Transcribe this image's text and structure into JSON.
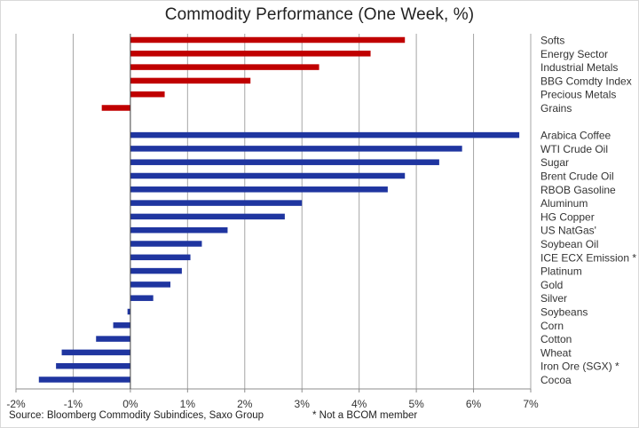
{
  "chart_data": {
    "type": "bar",
    "orientation": "horizontal",
    "title": "Commodity Performance (One Week, %)",
    "xlim": [
      -2,
      7
    ],
    "xticks": [
      "-2%",
      "-1%",
      "0%",
      "1%",
      "2%",
      "3%",
      "4%",
      "5%",
      "6%",
      "7%"
    ],
    "grid": "vertical",
    "groups": [
      {
        "color": "#c00000",
        "categories": [
          "Softs",
          "Energy Sector",
          "Industrial Metals",
          "BBG Comdty Index",
          "Precious Metals",
          "Grains"
        ],
        "values": [
          4.8,
          4.2,
          3.3,
          2.1,
          0.6,
          -0.5
        ]
      },
      {
        "color": "#1f35a0",
        "categories": [
          "Arabica Coffee",
          "WTI Crude Oil",
          "Sugar",
          "Brent Crude Oil",
          "RBOB Gasoline",
          "Aluminum",
          "HG Copper",
          "US NatGas'",
          "Soybean Oil",
          "ICE ECX Emission *",
          "Platinum",
          "Gold",
          "Silver",
          "Soybeans",
          "Corn",
          "Cotton",
          "Wheat",
          "Iron Ore (SGX) *",
          "Cocoa"
        ],
        "values": [
          6.8,
          5.8,
          5.4,
          4.8,
          4.5,
          3.0,
          2.7,
          1.7,
          1.25,
          1.05,
          0.9,
          0.7,
          0.4,
          -0.05,
          -0.3,
          -0.6,
          -1.2,
          -1.3,
          -1.6
        ]
      }
    ]
  },
  "footer": {
    "source": "Source: Bloomberg Commodity Subindices, Saxo Group",
    "note": "* Not a BCOM member"
  }
}
